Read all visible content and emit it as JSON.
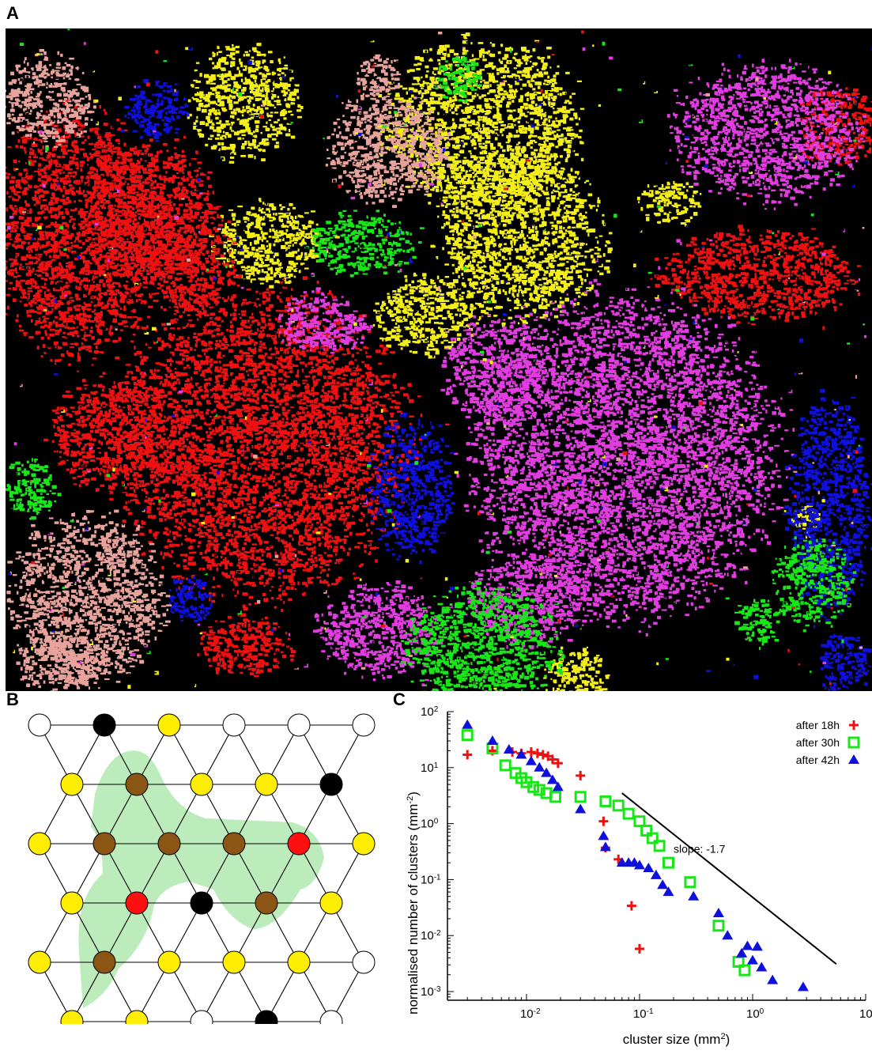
{
  "panels": {
    "a": {
      "letter": "A"
    },
    "b": {
      "letter": "B"
    },
    "c": {
      "letter": "C"
    }
  },
  "colors": {
    "red": "#ee1111",
    "yellow": "#f4ee19",
    "magenta": "#e23de0",
    "blue": "#1010dd",
    "green": "#19e619",
    "pink": "#e8a49c",
    "background": "#000000"
  },
  "lattice": {
    "node_colors": {
      "white": "#ffffff",
      "black": "#000000",
      "yellow": "#ffee00",
      "brown": "#8b5513",
      "red": "#ff1010"
    },
    "cluster_highlight": "#9fe39f",
    "rows": [
      [
        "white",
        "black",
        "yellow",
        "white",
        "white",
        "white"
      ],
      [
        "yellow",
        "brown",
        "yellow",
        "yellow",
        "black"
      ],
      [
        "yellow",
        "brown",
        "brown",
        "brown",
        "red",
        "yellow"
      ],
      [
        "yellow",
        "red",
        "black",
        "brown",
        "yellow"
      ],
      [
        "yellow",
        "brown",
        "yellow",
        "yellow",
        "yellow",
        "white"
      ],
      [
        "yellow",
        "yellow",
        "white",
        "black",
        "white"
      ]
    ]
  },
  "chart_data": {
    "type": "scatter",
    "xscale": "log",
    "yscale": "log",
    "xlim": [
      0.002,
      10
    ],
    "ylim": [
      0.0007,
      100
    ],
    "ylabel": "normalised number of clusters (mm",
    "ylabel_sup": "-2",
    "ylabel_end": ")",
    "xlabel": "cluster size (mm",
    "xlabel_sup": "2",
    "xlabel_end": ")",
    "xticks": [
      {
        "value": 0.01,
        "base": "10",
        "exp": "-2"
      },
      {
        "value": 0.1,
        "base": "10",
        "exp": "-1"
      },
      {
        "value": 1,
        "base": "10",
        "exp": "0"
      },
      {
        "value": 10,
        "base": "10",
        "exp": "1"
      }
    ],
    "yticks": [
      {
        "value": 0.001,
        "base": "10",
        "exp": "-3"
      },
      {
        "value": 0.01,
        "base": "10",
        "exp": "-2"
      },
      {
        "value": 0.1,
        "base": "10",
        "exp": "-1"
      },
      {
        "value": 1,
        "base": "10",
        "exp": "0"
      },
      {
        "value": 10,
        "base": "10",
        "exp": "1"
      },
      {
        "value": 100,
        "base": "10",
        "exp": "2"
      }
    ],
    "legend_position": "top-right",
    "annotation": {
      "text": "slope: -1.7",
      "x": 0.2,
      "y": 0.3
    },
    "slope_line": {
      "x": [
        0.07,
        5.5
      ],
      "y": [
        3.5,
        0.0031
      ]
    },
    "series": [
      {
        "name": "after 18h",
        "marker": "plus",
        "color": "#ee1111",
        "x": [
          0.003,
          0.005,
          0.0075,
          0.009,
          0.011,
          0.0125,
          0.014,
          0.0155,
          0.017,
          0.019,
          0.03,
          0.048,
          0.05,
          0.065,
          0.085,
          0.1
        ],
        "y": [
          17,
          20,
          19,
          18,
          19,
          18,
          17,
          16,
          14,
          12,
          7.2,
          1.1,
          0.37,
          0.23,
          0.034,
          0.0058
        ]
      },
      {
        "name": "after 30h",
        "marker": "square",
        "color": "#19e619",
        "x": [
          0.003,
          0.005,
          0.0065,
          0.008,
          0.009,
          0.01,
          0.0115,
          0.013,
          0.015,
          0.018,
          0.03,
          0.05,
          0.065,
          0.08,
          0.1,
          0.115,
          0.13,
          0.15,
          0.18,
          0.28,
          0.5,
          0.75,
          0.85
        ],
        "y": [
          38,
          22,
          11,
          8,
          6.5,
          5.5,
          4.5,
          4,
          3.5,
          3,
          3,
          2.5,
          2.1,
          1.5,
          1.1,
          0.75,
          0.55,
          0.4,
          0.2,
          0.09,
          0.015,
          0.0034,
          0.0024
        ]
      },
      {
        "name": "after 42h",
        "marker": "triangle",
        "color": "#1010dd",
        "x": [
          0.003,
          0.005,
          0.007,
          0.009,
          0.011,
          0.013,
          0.015,
          0.017,
          0.019,
          0.03,
          0.048,
          0.05,
          0.07,
          0.08,
          0.09,
          0.1,
          0.12,
          0.14,
          0.16,
          0.18,
          0.3,
          0.5,
          0.6,
          0.8,
          0.9,
          1,
          1.1,
          1.2,
          1.5,
          2.8
        ],
        "y": [
          58,
          30,
          21,
          17,
          13,
          10,
          8,
          6,
          4.5,
          1.8,
          0.6,
          0.38,
          0.2,
          0.2,
          0.2,
          0.18,
          0.16,
          0.12,
          0.08,
          0.06,
          0.05,
          0.025,
          0.01,
          0.0048,
          0.0065,
          0.0036,
          0.0063,
          0.0027,
          0.0016,
          0.0012
        ]
      }
    ]
  }
}
